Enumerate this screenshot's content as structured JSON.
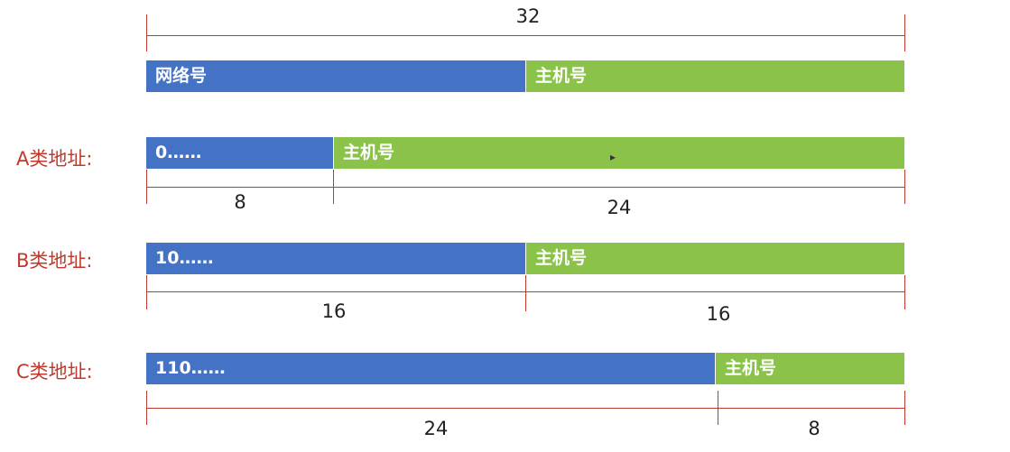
{
  "total_bits": "32",
  "general": {
    "net": "网络号",
    "host": "主机号"
  },
  "rows": [
    {
      "label": "A类地址:",
      "net": "0……",
      "host": "主机号",
      "net_bits": "8",
      "host_bits": "24"
    },
    {
      "label": "B类地址:",
      "net": "10……",
      "host": "主机号",
      "net_bits": "16",
      "host_bits": "16"
    },
    {
      "label": "C类地址:",
      "net": "110……",
      "host": "主机号",
      "net_bits": "24",
      "host_bits": "8"
    }
  ],
  "colors": {
    "net": "#4472c4",
    "host": "#8bc34a",
    "dimension": "#c0392b",
    "label": "#c0392b"
  }
}
